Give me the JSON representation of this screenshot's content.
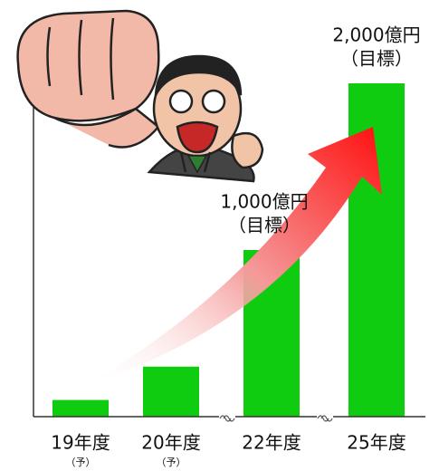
{
  "chart_data": {
    "type": "bar",
    "categories": [
      "19年度",
      "20年度",
      "22年度",
      "25年度"
    ],
    "category_notes": [
      "（予）",
      "（予）",
      null,
      null
    ],
    "values": [
      100,
      300,
      1000,
      2000
    ],
    "value_labels": [
      null,
      null,
      "1,000億円",
      "2,000億円"
    ],
    "value_notes": [
      null,
      null,
      "（目標）",
      "（目標）"
    ],
    "color": "#10cc10"
  }
}
